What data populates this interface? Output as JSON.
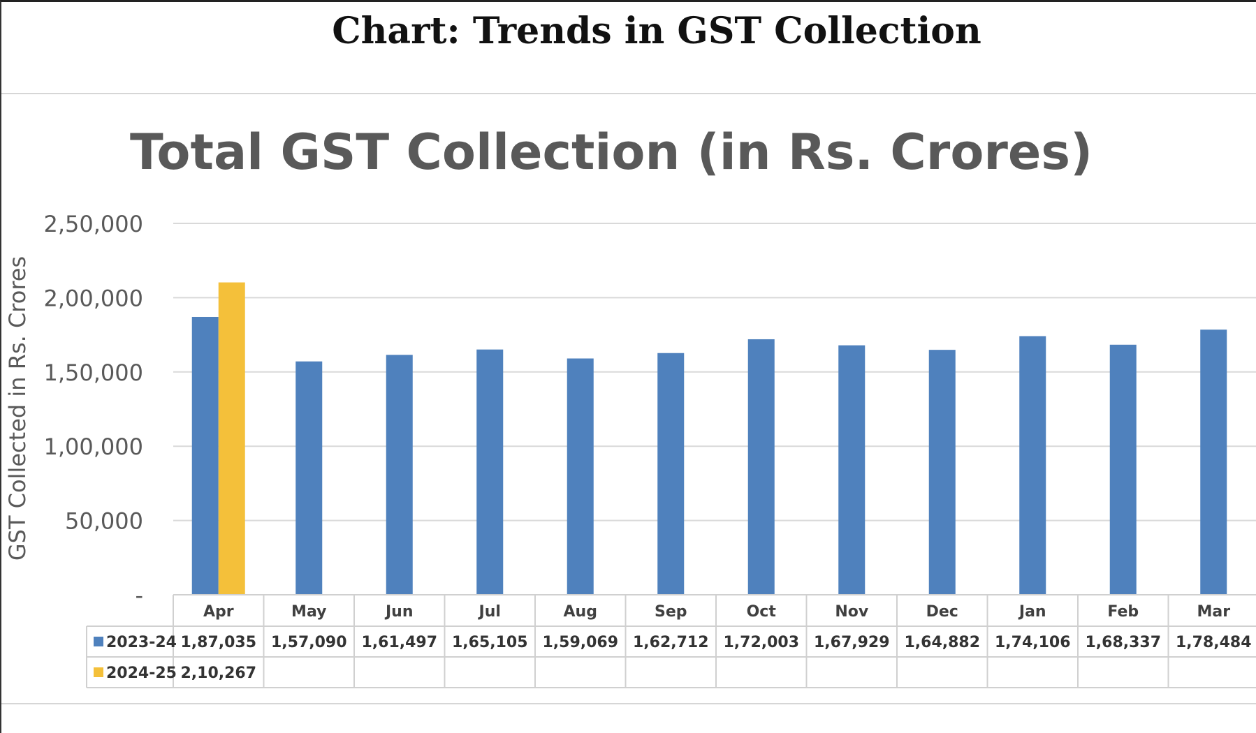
{
  "heading": "Chart: Trends in GST Collection",
  "chart_data": {
    "type": "bar",
    "title": "Total GST Collection (in Rs. Crores)",
    "xlabel": "",
    "ylabel": "GST Collected in Rs. Crores",
    "ylim": [
      0,
      250000
    ],
    "yticks": [
      0,
      50000,
      100000,
      150000,
      200000,
      250000
    ],
    "ytick_labels": [
      "-",
      "50,000",
      "1,00,000",
      "1,50,000",
      "2,00,000",
      "2,50,000"
    ],
    "grid": true,
    "legend": "data-table",
    "categories": [
      "Apr",
      "May",
      "Jun",
      "Jul",
      "Aug",
      "Sep",
      "Oct",
      "Nov",
      "Dec",
      "Jan",
      "Feb",
      "Mar"
    ],
    "series": [
      {
        "name": "2023-24",
        "color": "#4f81bd",
        "values": [
          187035,
          157090,
          161497,
          165105,
          159069,
          162712,
          172003,
          167929,
          164882,
          174106,
          168337,
          178484
        ],
        "labels": [
          "1,87,035",
          "1,57,090",
          "1,61,497",
          "1,65,105",
          "1,59,069",
          "1,62,712",
          "1,72,003",
          "1,67,929",
          "1,64,882",
          "1,74,106",
          "1,68,337",
          "1,78,484"
        ]
      },
      {
        "name": "2024-25",
        "color": "#f4c03a",
        "values": [
          210267,
          null,
          null,
          null,
          null,
          null,
          null,
          null,
          null,
          null,
          null,
          null
        ],
        "labels": [
          "2,10,267",
          "",
          "",
          "",
          "",
          "",
          "",
          "",
          "",
          "",
          "",
          ""
        ]
      }
    ]
  }
}
